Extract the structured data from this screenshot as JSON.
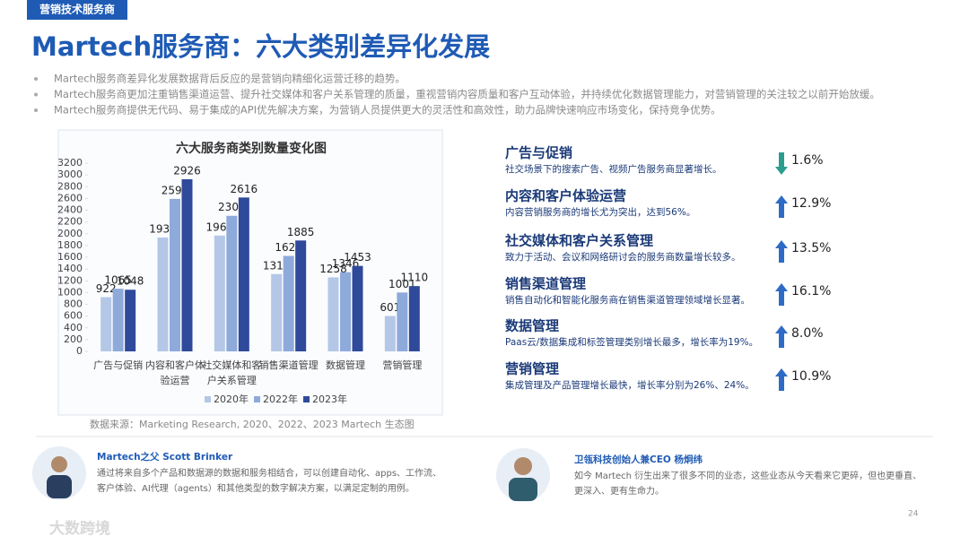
{
  "header": {
    "tag": "营销技术服务商",
    "title": "Martech服务商：六大类别差异化发展"
  },
  "bullets": [
    "Martech服务商差异化发展数据背后反应的是营销向精细化运营迁移的趋势。",
    "Martech服务商更加注重销售渠道运营、提升社交媒体和客户关系管理的质量，重视营销内容质量和客户互动体验，并持续优化数据管理能力，对营销管理的关注较之以前开始放缓。",
    "Martech服务商提供无代码、易于集成的API优先解决方案，为营销人员提供更大的灵活性和高效性，助力品牌快速响应市场变化，保持竞争优势。"
  ],
  "chart_data": {
    "type": "bar",
    "title": "六大服务商类别数量变化图",
    "categories": [
      "广告与促销",
      "内容和客户体验运营",
      "社交媒体和客户关系管理",
      "销售渠道管理",
      "数据管理",
      "营销管理"
    ],
    "series": [
      {
        "name": "2020年",
        "color": "#b4c7e7",
        "values": [
          922,
          1936,
          1969,
          1314,
          1258,
          601
        ]
      },
      {
        "name": "2022年",
        "color": "#8eaadb",
        "values": [
          1065,
          2592,
          2305,
          1623,
          1346,
          1001
        ]
      },
      {
        "name": "2023年",
        "color": "#2f4a9a",
        "values": [
          1048,
          2926,
          2616,
          1885,
          1453,
          1110
        ]
      }
    ],
    "ylim": [
      0,
      3200
    ],
    "yticks": [
      0,
      200,
      400,
      600,
      800,
      1000,
      1200,
      1400,
      1600,
      1800,
      2000,
      2200,
      2400,
      2600,
      2800,
      3000,
      3200
    ],
    "legend": "bottom",
    "source": "数据来源：Marketing Research, 2020、2022、2023 Martech 生态图"
  },
  "items": [
    {
      "title": "广告与促销",
      "desc": "社交场景下的搜索广告、视频广告服务商显著增长。",
      "change": "1.6%",
      "trend": "down"
    },
    {
      "title": "内容和客户体验运营",
      "desc": "内容营销服务商的增长尤为突出，达到56%。",
      "change": "12.9%",
      "trend": "up"
    },
    {
      "title": "社交媒体和客户关系管理",
      "desc": "致力于活动、会议和网络研讨会的服务商数量增长较多。",
      "change": "13.5%",
      "trend": "up"
    },
    {
      "title": "销售渠道管理",
      "desc": "销售自动化和智能化服务商在销售渠道管理领域增长显著。",
      "change": "16.1%",
      "trend": "up"
    },
    {
      "title": "数据管理",
      "desc": "Paas云/数据集成和标签管理类别增长最多，增长率为19%。",
      "change": "8.0%",
      "trend": "up"
    },
    {
      "title": "营销管理",
      "desc": "集成管理及产品管理增长最快，增长率分别为26%、24%。",
      "change": "10.9%",
      "trend": "up"
    }
  ],
  "quotes": [
    {
      "name": "Martech之父  Scott Brinker",
      "lines": [
        "通过将来自多个产品和数据源的数据和服务相结合，可以创建自动化、apps、工作流、",
        "客户体验、AI代理（agents）和其他类型的数字解决方案，以满足定制的用例。"
      ]
    },
    {
      "name": "卫瓴科技创始人兼CEO 杨炯纬",
      "lines": [
        "如今 Martech 衍生出来了很多不同的业态，这些业态从今天看来它更碎，但也更垂直、",
        "更深入、更有生命力。"
      ]
    }
  ],
  "footer": {
    "page": "24",
    "logo": "大数跨境"
  }
}
